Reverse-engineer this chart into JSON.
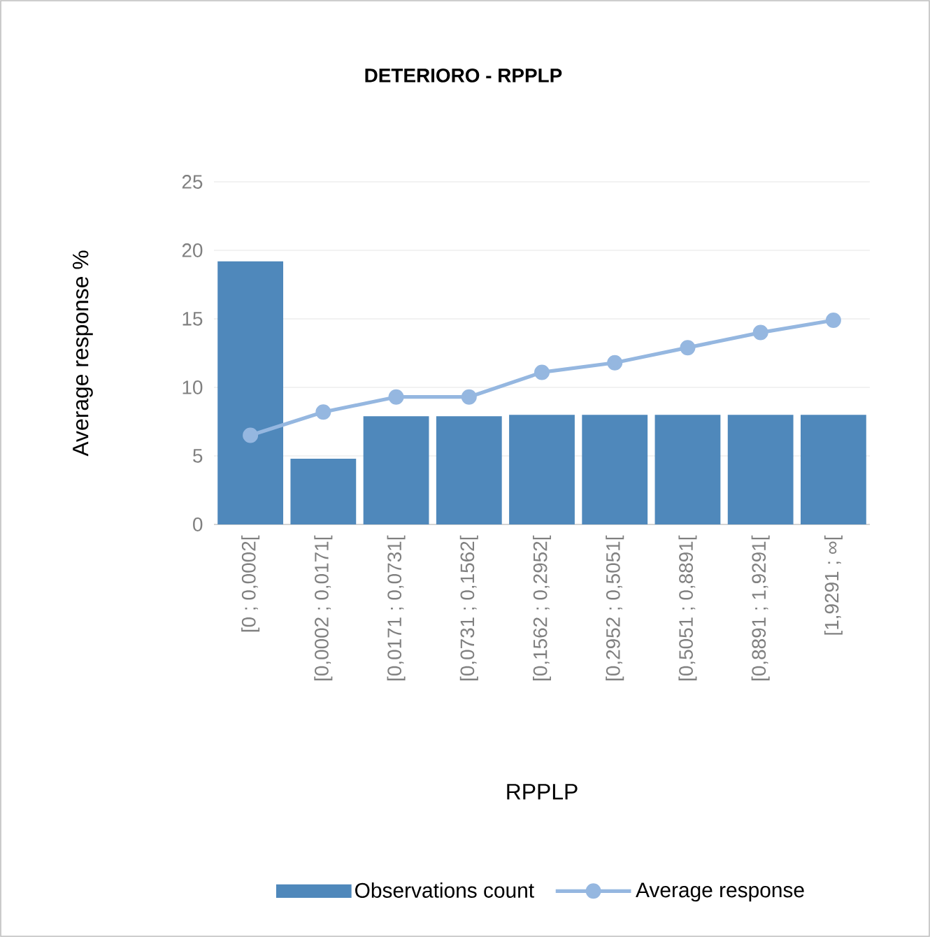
{
  "chart_data": {
    "type": "bar",
    "title": "DETERIORO - RPPLP",
    "xlabel": "RPPLP",
    "ylabel": "Average response %",
    "categories": [
      "[0 ; 0,0002[",
      "[0,0002 ; 0,0171[",
      "[0,0171 ; 0,0731[",
      "[0,0731 ; 0,1562[",
      "[0,1562 ; 0,2952[",
      "[0,2952 ; 0,5051[",
      "[0,5051 ; 0,8891[",
      "[0,8891 ; 1,9291[",
      "[1,9291 ; ∞["
    ],
    "series": [
      {
        "name": "Observations count",
        "color": "#4f88bb",
        "values": [
          19.2,
          4.8,
          7.9,
          7.9,
          8.0,
          8.0,
          8.0,
          8.0,
          8.0
        ]
      },
      {
        "name": "Average response",
        "type": "line",
        "color": "#95b7e0",
        "marker": "circle",
        "values": [
          6.5,
          8.2,
          9.3,
          9.3,
          11.1,
          11.8,
          12.9,
          14.0,
          14.9
        ]
      }
    ],
    "ylim": [
      0,
      25
    ],
    "yticks": [
      0,
      5,
      10,
      15,
      20,
      25
    ],
    "grid": "y",
    "legend": "bottom"
  }
}
